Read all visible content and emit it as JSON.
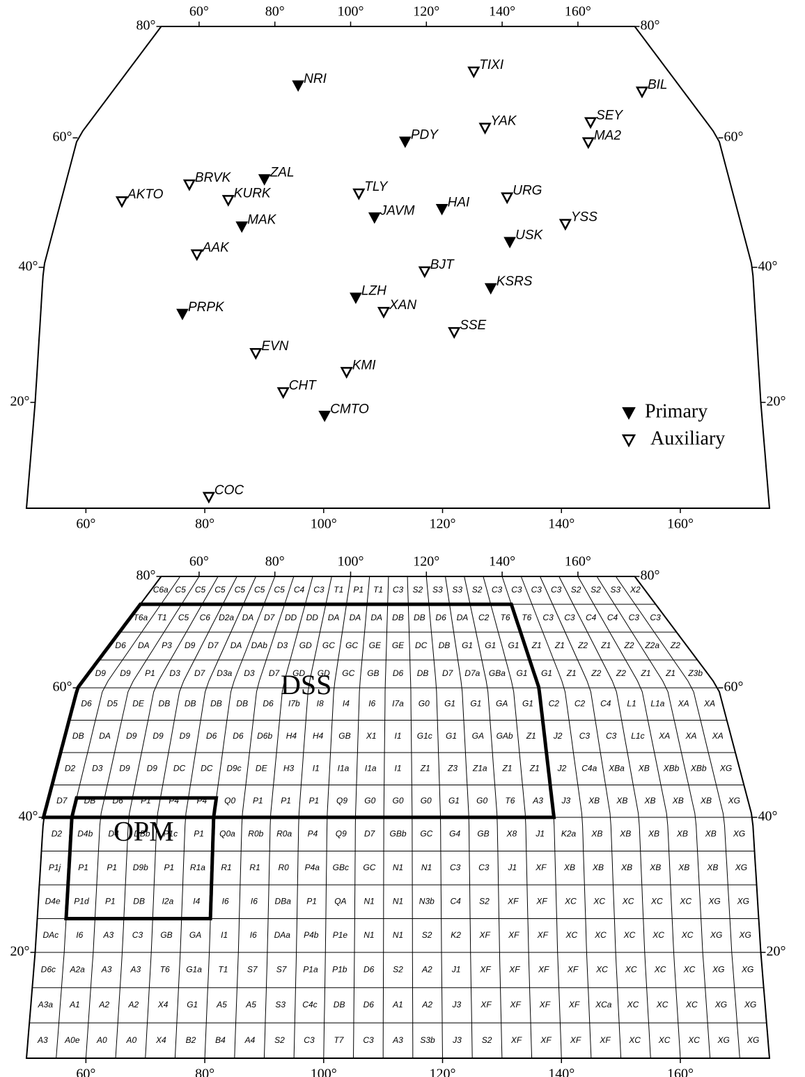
{
  "chart_data": [
    {
      "type": "stations",
      "xlim": [
        50,
        175
      ],
      "ylim": [
        5,
        80
      ],
      "xticks": [
        {
          "value": 60,
          "label": "60°"
        },
        {
          "value": 80,
          "label": "80°"
        },
        {
          "value": 100,
          "label": "100°"
        },
        {
          "value": 120,
          "label": "120°"
        },
        {
          "value": 140,
          "label": "140°"
        },
        {
          "value": 160,
          "label": "160°"
        }
      ],
      "yticks": [
        {
          "value": 20,
          "label": "20°"
        },
        {
          "value": 40,
          "label": "40°"
        },
        {
          "value": 60,
          "label": "60°"
        },
        {
          "value": 80,
          "label": "80°"
        }
      ],
      "series": [
        {
          "name": "Primary",
          "color": "#000000",
          "filled": true,
          "labels": [
            "NRI",
            "PDY",
            "ZAL",
            "JAVM",
            "HAI",
            "MAK",
            "USK",
            "KSRS",
            "LZH",
            "PRPK",
            "CMTO"
          ],
          "x": [
            90.3,
            113.9,
            87.3,
            108.2,
            120.6,
            84.1,
            132.6,
            128.8,
            105.1,
            74.8,
            99.9
          ],
          "values": [
            69.4,
            59.4,
            53.6,
            47.7,
            49.0,
            46.3,
            43.9,
            36.9,
            35.5,
            33.1,
            18.1
          ]
        },
        {
          "name": "Auxiliary",
          "color": "#000000",
          "filled": false,
          "labels": [
            "TIXI",
            "BIL",
            "SEY",
            "YAK",
            "MA2",
            "BRVK",
            "AKTO",
            "KURK",
            "TLY",
            "URG",
            "YSS",
            "AAK",
            "BJT",
            "XAN",
            "SSE",
            "EVN",
            "KMI",
            "CHT",
            "COC"
          ],
          "x": [
            130.0,
            165.9,
            151.5,
            129.9,
            149.5,
            73.3,
            61.3,
            81.0,
            105.2,
            132.8,
            143.0,
            76.7,
            117.2,
            110.0,
            122.3,
            87.8,
            103.6,
            92.7,
            80.6
          ],
          "values": [
            71.9,
            68.3,
            62.8,
            61.8,
            59.3,
            52.8,
            50.2,
            50.4,
            51.4,
            50.8,
            46.7,
            42.0,
            39.4,
            33.4,
            30.4,
            27.3,
            24.5,
            21.5,
            6.6
          ]
        }
      ]
    },
    {
      "type": "cells",
      "xlim": [
        50,
        175
      ],
      "ylim": [
        5,
        80
      ],
      "cell_size": 5,
      "xticks": [
        {
          "value": 60,
          "label": "60°"
        },
        {
          "value": 80,
          "label": "80°"
        },
        {
          "value": 100,
          "label": "100°"
        },
        {
          "value": 120,
          "label": "120°"
        },
        {
          "value": 140,
          "label": "140°"
        },
        {
          "value": 160,
          "label": "160°"
        }
      ],
      "yticks": [
        {
          "value": 20,
          "label": "20°"
        },
        {
          "value": 40,
          "label": "40°"
        },
        {
          "value": 60,
          "label": "60°"
        },
        {
          "value": 80,
          "label": "80°"
        }
      ],
      "rows": [
        [
          "C6a",
          "C5",
          "C5",
          "C5",
          "C5",
          "C5",
          "C5",
          "C4",
          "C3",
          "T1",
          "P1",
          "T1",
          "C3",
          "S2",
          "S3",
          "S3",
          "S2",
          "C3",
          "C3",
          "C3",
          "C3",
          "S2",
          "S2",
          "S3",
          "X2"
        ],
        [
          "T6a",
          "T1",
          "C5",
          "C6",
          "D2a",
          "DA",
          "D7",
          "DD",
          "DD",
          "DA",
          "DA",
          "DA",
          "DB",
          "DB",
          "D6",
          "DA",
          "C2",
          "T6",
          "T6",
          "C3",
          "C3",
          "C4",
          "C4",
          "C3",
          "C3"
        ],
        [
          "D6",
          "DA",
          "P3",
          "D9",
          "D7",
          "DA",
          "DAb",
          "D3",
          "GD",
          "GC",
          "GC",
          "GE",
          "GE",
          "DC",
          "DB",
          "G1",
          "G1",
          "G1",
          "Z1",
          "Z1",
          "Z2",
          "Z1",
          "Z2",
          "Z2a",
          "Z2"
        ],
        [
          "D9",
          "D9",
          "P1",
          "D3",
          "D7",
          "D3a",
          "D3",
          "D7",
          "GD",
          "GD",
          "GC",
          "GB",
          "D6",
          "DB",
          "D7",
          "D7a",
          "GBa",
          "G1",
          "G1",
          "Z1",
          "Z2",
          "Z2",
          "Z1",
          "Z1",
          "Z3b"
        ],
        [
          "D6",
          "D5",
          "DE",
          "DB",
          "DB",
          "DB",
          "DB",
          "D6",
          "I7b",
          "I8",
          "I4",
          "I6",
          "I7a",
          "G0",
          "G1",
          "G1",
          "GA",
          "G1",
          "C2",
          "C2",
          "C4",
          "L1",
          "L1a",
          "XA",
          "XA"
        ],
        [
          "DB",
          "DA",
          "D9",
          "D9",
          "D9",
          "D6",
          "D6",
          "D6b",
          "H4",
          "H4",
          "GB",
          "X1",
          "I1",
          "G1c",
          "G1",
          "GA",
          "GAb",
          "Z1",
          "J2",
          "C3",
          "C3",
          "L1c",
          "XA",
          "XA",
          "XA"
        ],
        [
          "D2",
          "D3",
          "D9",
          "D9",
          "DC",
          "DC",
          "D9c",
          "DE",
          "H3",
          "I1",
          "I1a",
          "I1a",
          "I1",
          "Z1",
          "Z3",
          "Z1a",
          "Z1",
          "Z1",
          "J2",
          "C4a",
          "XBa",
          "XB",
          "XBb",
          "XBb",
          "XG"
        ],
        [
          "D7",
          "DB",
          "D6",
          "P1",
          "P4",
          "P4",
          "Q0",
          "P1",
          "P1",
          "P1",
          "Q9",
          "G0",
          "G0",
          "G0",
          "G1",
          "G0",
          "T6",
          "A3",
          "J3",
          "XB",
          "XB",
          "XB",
          "XB",
          "XB",
          "XG"
        ],
        [
          "D2",
          "D4b",
          "D4",
          "DBb",
          "P1c",
          "P1",
          "Q0a",
          "R0b",
          "R0a",
          "P4",
          "Q9",
          "D7",
          "GBb",
          "GC",
          "G4",
          "GB",
          "X8",
          "J1",
          "K2a",
          "XB",
          "XB",
          "XB",
          "XB",
          "XB",
          "XG"
        ],
        [
          "P1j",
          "P1",
          "P1",
          "D9b",
          "P1",
          "R1a",
          "R1",
          "R1",
          "R0",
          "P4a",
          "GBc",
          "GC",
          "N1",
          "N1",
          "C3",
          "C3",
          "J1",
          "XF",
          "XB",
          "XB",
          "XB",
          "XB",
          "XB",
          "XB",
          "XG"
        ],
        [
          "D4e",
          "P1d",
          "P1",
          "DB",
          "I2a",
          "I4",
          "I6",
          "I6",
          "DBa",
          "P1",
          "QA",
          "N1",
          "N1",
          "N3b",
          "C4",
          "S2",
          "XF",
          "XF",
          "XC",
          "XC",
          "XC",
          "XC",
          "XC",
          "XG",
          "XG"
        ],
        [
          "DAc",
          "I6",
          "A3",
          "C3",
          "GB",
          "GA",
          "I1",
          "I6",
          "DAa",
          "P4b",
          "P1e",
          "N1",
          "N1",
          "S2",
          "K2",
          "XF",
          "XF",
          "XF",
          "XC",
          "XC",
          "XC",
          "XC",
          "XC",
          "XG",
          "XG"
        ],
        [
          "D6c",
          "A2a",
          "A3",
          "A3",
          "T6",
          "G1a",
          "T1",
          "S7",
          "S7",
          "P1a",
          "P1b",
          "D6",
          "S2",
          "A2",
          "J1",
          "XF",
          "XF",
          "XF",
          "XF",
          "XC",
          "XC",
          "XC",
          "XC",
          "XG",
          "XG"
        ],
        [
          "A3a",
          "A1",
          "A2",
          "A2",
          "X4",
          "G1",
          "A5",
          "A5",
          "S3",
          "C4c",
          "DB",
          "D6",
          "A1",
          "A2",
          "J3",
          "XF",
          "XF",
          "XF",
          "XF",
          "XCa",
          "XC",
          "XC",
          "XC",
          "XG",
          "XG"
        ],
        [
          "A3",
          "A0e",
          "A0",
          "A0",
          "X4",
          "B2",
          "B4",
          "A4",
          "S2",
          "C3",
          "T7",
          "C3",
          "A3",
          "S3b",
          "J3",
          "S2",
          "XF",
          "XF",
          "XF",
          "XF",
          "XC",
          "XC",
          "XC",
          "XG",
          "XG"
        ]
      ],
      "boxes": [
        {
          "label": "DSS",
          "lon": [
            50,
            140
          ],
          "lat": [
            40,
            75
          ]
        },
        {
          "label": "OPM",
          "lon": [
            55,
            80
          ],
          "lat": [
            25,
            43
          ]
        }
      ]
    }
  ]
}
